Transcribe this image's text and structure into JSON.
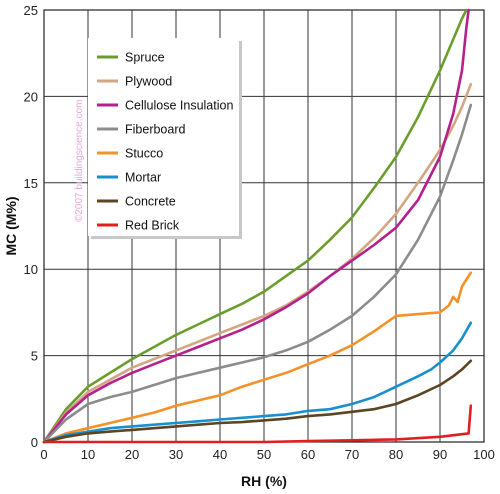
{
  "chart_data": {
    "type": "line",
    "title": "",
    "xlabel": "RH (%)",
    "ylabel": "MC (M%)",
    "xlim": [
      0,
      100
    ],
    "ylim": [
      0,
      25
    ],
    "x_ticks": [
      0,
      10,
      20,
      30,
      40,
      50,
      60,
      70,
      80,
      90,
      100
    ],
    "y_ticks": [
      0,
      5,
      10,
      15,
      20,
      25
    ],
    "grid": true,
    "legend_placement": "top-left",
    "watermark": "©2007 buildingscience.com",
    "series": [
      {
        "name": "Spruce",
        "color": "#6a9e2c",
        "points": [
          [
            0,
            0
          ],
          [
            5,
            1.9
          ],
          [
            10,
            3.2
          ],
          [
            15,
            4
          ],
          [
            20,
            4.8
          ],
          [
            25,
            5.5
          ],
          [
            30,
            6.2
          ],
          [
            35,
            6.8
          ],
          [
            40,
            7.4
          ],
          [
            45,
            8
          ],
          [
            50,
            8.7
          ],
          [
            55,
            9.6
          ],
          [
            60,
            10.5
          ],
          [
            65,
            11.7
          ],
          [
            70,
            13
          ],
          [
            75,
            14.7
          ],
          [
            80,
            16.5
          ],
          [
            85,
            18.8
          ],
          [
            90,
            21.5
          ],
          [
            93,
            23.3
          ],
          [
            95,
            24.5
          ],
          [
            96,
            25
          ]
        ]
      },
      {
        "name": "Plywood",
        "color": "#d4a582",
        "points": [
          [
            0,
            0
          ],
          [
            5,
            1.7
          ],
          [
            10,
            2.9
          ],
          [
            15,
            3.6
          ],
          [
            20,
            4.3
          ],
          [
            25,
            4.8
          ],
          [
            30,
            5.3
          ],
          [
            35,
            5.8
          ],
          [
            40,
            6.3
          ],
          [
            45,
            6.8
          ],
          [
            50,
            7.3
          ],
          [
            55,
            7.9
          ],
          [
            60,
            8.7
          ],
          [
            65,
            9.6
          ],
          [
            70,
            10.6
          ],
          [
            75,
            11.8
          ],
          [
            80,
            13.2
          ],
          [
            85,
            15
          ],
          [
            90,
            16.9
          ],
          [
            93,
            18.3
          ],
          [
            95,
            19.4
          ],
          [
            97,
            20.7
          ]
        ]
      },
      {
        "name": "Cellulose Insulation",
        "color": "#b5218c",
        "points": [
          [
            0,
            0
          ],
          [
            5,
            1.6
          ],
          [
            10,
            2.7
          ],
          [
            15,
            3.4
          ],
          [
            20,
            4
          ],
          [
            25,
            4.5
          ],
          [
            30,
            5
          ],
          [
            35,
            5.5
          ],
          [
            40,
            6
          ],
          [
            45,
            6.5
          ],
          [
            50,
            7.1
          ],
          [
            55,
            7.8
          ],
          [
            60,
            8.6
          ],
          [
            65,
            9.6
          ],
          [
            70,
            10.5
          ],
          [
            75,
            11.4
          ],
          [
            80,
            12.4
          ],
          [
            85,
            14
          ],
          [
            90,
            16.5
          ],
          [
            93,
            19
          ],
          [
            95,
            21.5
          ],
          [
            96,
            24
          ],
          [
            96.5,
            25
          ]
        ]
      },
      {
        "name": "Fiberboard",
        "color": "#8c8c8c",
        "points": [
          [
            0,
            0
          ],
          [
            5,
            1.3
          ],
          [
            10,
            2.2
          ],
          [
            15,
            2.6
          ],
          [
            20,
            2.9
          ],
          [
            25,
            3.3
          ],
          [
            30,
            3.7
          ],
          [
            35,
            4
          ],
          [
            40,
            4.3
          ],
          [
            45,
            4.6
          ],
          [
            50,
            4.9
          ],
          [
            55,
            5.3
          ],
          [
            60,
            5.8
          ],
          [
            65,
            6.5
          ],
          [
            70,
            7.3
          ],
          [
            75,
            8.4
          ],
          [
            80,
            9.7
          ],
          [
            85,
            11.7
          ],
          [
            90,
            14.2
          ],
          [
            93,
            16.3
          ],
          [
            95,
            17.8
          ],
          [
            97,
            19.5
          ]
        ]
      },
      {
        "name": "Stucco",
        "color": "#f3922a",
        "points": [
          [
            0,
            0
          ],
          [
            5,
            0.5
          ],
          [
            10,
            0.8
          ],
          [
            15,
            1.1
          ],
          [
            20,
            1.4
          ],
          [
            25,
            1.7
          ],
          [
            30,
            2.1
          ],
          [
            35,
            2.4
          ],
          [
            40,
            2.7
          ],
          [
            45,
            3.2
          ],
          [
            50,
            3.6
          ],
          [
            55,
            4
          ],
          [
            60,
            4.5
          ],
          [
            65,
            5
          ],
          [
            70,
            5.6
          ],
          [
            75,
            6.4
          ],
          [
            80,
            7.3
          ],
          [
            85,
            7.4
          ],
          [
            90,
            7.5
          ],
          [
            92,
            7.9
          ],
          [
            93,
            8.4
          ],
          [
            94,
            8.1
          ],
          [
            95,
            9
          ],
          [
            97,
            9.8
          ]
        ]
      },
      {
        "name": "Mortar",
        "color": "#1a8fd0",
        "points": [
          [
            0,
            0
          ],
          [
            5,
            0.4
          ],
          [
            10,
            0.6
          ],
          [
            15,
            0.8
          ],
          [
            20,
            0.9
          ],
          [
            25,
            1
          ],
          [
            30,
            1.1
          ],
          [
            35,
            1.2
          ],
          [
            40,
            1.3
          ],
          [
            45,
            1.4
          ],
          [
            50,
            1.5
          ],
          [
            55,
            1.6
          ],
          [
            60,
            1.8
          ],
          [
            65,
            1.9
          ],
          [
            70,
            2.2
          ],
          [
            75,
            2.6
          ],
          [
            80,
            3.2
          ],
          [
            85,
            3.8
          ],
          [
            88,
            4.2
          ],
          [
            90,
            4.6
          ],
          [
            93,
            5.3
          ],
          [
            95,
            6
          ],
          [
            97,
            6.9
          ]
        ]
      },
      {
        "name": "Concrete",
        "color": "#5b4524",
        "points": [
          [
            0,
            0
          ],
          [
            5,
            0.3
          ],
          [
            10,
            0.5
          ],
          [
            15,
            0.6
          ],
          [
            20,
            0.7
          ],
          [
            25,
            0.8
          ],
          [
            30,
            0.9
          ],
          [
            35,
            1
          ],
          [
            40,
            1.1
          ],
          [
            45,
            1.15
          ],
          [
            50,
            1.25
          ],
          [
            55,
            1.35
          ],
          [
            60,
            1.5
          ],
          [
            65,
            1.6
          ],
          [
            70,
            1.75
          ],
          [
            75,
            1.9
          ],
          [
            80,
            2.2
          ],
          [
            85,
            2.7
          ],
          [
            90,
            3.3
          ],
          [
            93,
            3.8
          ],
          [
            95,
            4.2
          ],
          [
            97,
            4.7
          ]
        ]
      },
      {
        "name": "Red Brick",
        "color": "#e02020",
        "points": [
          [
            0,
            0
          ],
          [
            10,
            0
          ],
          [
            20,
            0
          ],
          [
            30,
            0
          ],
          [
            40,
            0
          ],
          [
            50,
            0
          ],
          [
            60,
            0.05
          ],
          [
            70,
            0.1
          ],
          [
            80,
            0.15
          ],
          [
            90,
            0.3
          ],
          [
            95,
            0.45
          ],
          [
            96.5,
            0.5
          ],
          [
            97,
            2.1
          ]
        ]
      }
    ]
  }
}
